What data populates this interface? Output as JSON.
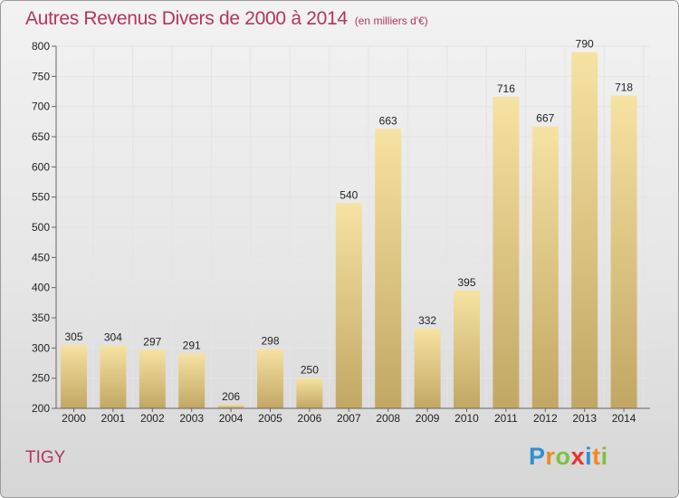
{
  "header": {
    "title": "Autres Revenus Divers de 2000 à 2014",
    "subtitle": "(en milliers d'€)"
  },
  "footer": {
    "location": "TIGY",
    "logo_letters": [
      "P",
      "r",
      "o",
      "x",
      "i",
      "t",
      "i"
    ],
    "logo_colors": [
      "#2e8fd4",
      "#f08a1c",
      "#7cc242",
      "#e8312f",
      "#2e8fd4",
      "#f08a1c",
      "#7cc242"
    ]
  },
  "colors": {
    "bar_light": "#f6e2a2",
    "bar_dark": "#c2a764",
    "grid": "#e4e4e4",
    "axis": "#666666"
  },
  "chart_data": {
    "type": "bar",
    "categories": [
      "2000",
      "2001",
      "2002",
      "2003",
      "2004",
      "2005",
      "2006",
      "2007",
      "2008",
      "2009",
      "2010",
      "2011",
      "2012",
      "2013",
      "2014"
    ],
    "values": [
      305,
      304,
      297,
      291,
      206,
      298,
      250,
      540,
      663,
      332,
      395,
      716,
      667,
      790,
      718
    ],
    "data_labels": [
      "305",
      "304",
      "297",
      "291",
      "206",
      "298",
      "250",
      "540",
      "663",
      "332",
      "395",
      "716",
      "667",
      "790",
      "718"
    ],
    "yticks": [
      "200",
      "250",
      "300",
      "350",
      "400",
      "450",
      "500",
      "550",
      "600",
      "650",
      "700",
      "750",
      "800"
    ],
    "ylim": [
      200,
      800
    ],
    "grid": true,
    "legend": "none"
  }
}
